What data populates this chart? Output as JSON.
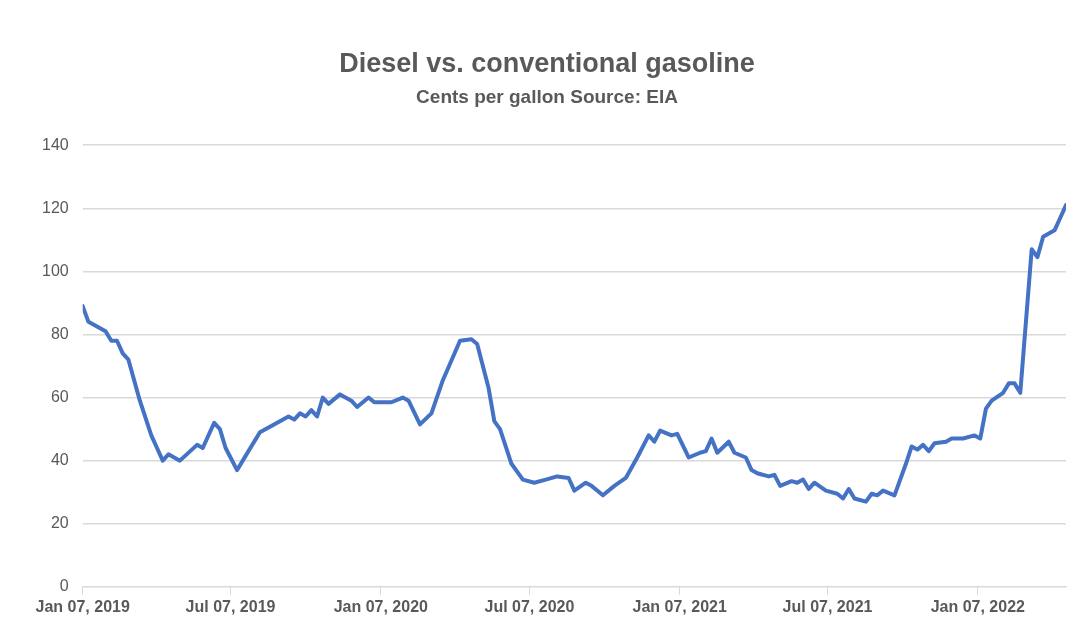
{
  "chart_data": {
    "type": "line",
    "title": "Diesel vs. conventional gasoline",
    "subtitle": "Cents per gallon Source: EIA",
    "x": [
      "2019-01-07",
      "2019-01-14",
      "2019-02-04",
      "2019-02-11",
      "2019-02-18",
      "2019-02-25",
      "2019-03-04",
      "2019-03-18",
      "2019-04-01",
      "2019-04-08",
      "2019-04-15",
      "2019-04-22",
      "2019-05-06",
      "2019-05-27",
      "2019-06-03",
      "2019-06-17",
      "2019-06-24",
      "2019-07-01",
      "2019-07-15",
      "2019-08-12",
      "2019-08-26",
      "2019-09-16",
      "2019-09-23",
      "2019-09-30",
      "2019-10-07",
      "2019-10-14",
      "2019-10-21",
      "2019-10-28",
      "2019-11-04",
      "2019-11-18",
      "2019-12-02",
      "2019-12-09",
      "2019-12-23",
      "2019-12-30",
      "2020-01-20",
      "2020-02-03",
      "2020-02-10",
      "2020-02-24",
      "2020-03-09",
      "2020-03-23",
      "2020-04-13",
      "2020-04-27",
      "2020-05-04",
      "2020-05-18",
      "2020-05-25",
      "2020-06-01",
      "2020-06-15",
      "2020-06-29",
      "2020-07-13",
      "2020-07-27",
      "2020-08-10",
      "2020-08-24",
      "2020-08-31",
      "2020-09-14",
      "2020-09-21",
      "2020-10-05",
      "2020-10-19",
      "2020-11-02",
      "2020-11-16",
      "2020-11-30",
      "2020-12-07",
      "2020-12-14",
      "2020-12-28",
      "2021-01-04",
      "2021-01-18",
      "2021-02-01",
      "2021-02-08",
      "2021-02-15",
      "2021-02-22",
      "2021-03-08",
      "2021-03-15",
      "2021-03-29",
      "2021-04-05",
      "2021-04-12",
      "2021-04-26",
      "2021-05-03",
      "2021-05-10",
      "2021-05-24",
      "2021-05-31",
      "2021-06-07",
      "2021-06-14",
      "2021-06-21",
      "2021-07-05",
      "2021-07-19",
      "2021-07-26",
      "2021-08-02",
      "2021-08-09",
      "2021-08-23",
      "2021-08-30",
      "2021-09-06",
      "2021-09-13",
      "2021-09-27",
      "2021-10-11",
      "2021-10-18",
      "2021-10-25",
      "2021-11-01",
      "2021-11-08",
      "2021-11-15",
      "2021-11-29",
      "2021-12-06",
      "2021-12-20",
      "2022-01-03",
      "2022-01-10",
      "2022-01-17",
      "2022-01-24",
      "2022-02-07",
      "2022-02-14",
      "2022-02-21",
      "2022-02-28",
      "2022-03-14",
      "2022-03-21",
      "2022-03-28",
      "2022-04-11",
      "2022-04-18",
      "2022-04-25"
    ],
    "series": [
      {
        "color": "#4472c4",
        "values": [
          89,
          84,
          81,
          78,
          78,
          74,
          72,
          59,
          48,
          44,
          40,
          42,
          40,
          45,
          44,
          52,
          50,
          44,
          37,
          49,
          51,
          54,
          53,
          55,
          54,
          56,
          54,
          60,
          58,
          61,
          59,
          57,
          60,
          58.5,
          58.5,
          60,
          59,
          51.5,
          55,
          65.5,
          78,
          78.5,
          77,
          63,
          52.5,
          50,
          39,
          34,
          33,
          34,
          35,
          34.5,
          30.5,
          33,
          32,
          29,
          32,
          34.5,
          41,
          48,
          46,
          49.5,
          48,
          48.5,
          41,
          42.5,
          43,
          47,
          42.5,
          46,
          42.5,
          41,
          37,
          36,
          35,
          35.5,
          32,
          33.5,
          33,
          34,
          31,
          33,
          30.5,
          29.5,
          28,
          31,
          28,
          27,
          29.5,
          29,
          30.5,
          29,
          39,
          44.5,
          43.5,
          45,
          43,
          45.5,
          46,
          47,
          47,
          48,
          47,
          56.5,
          59,
          61.5,
          64.5,
          64.5,
          61.5,
          107,
          104.5,
          111,
          113,
          117,
          121
        ]
      }
    ],
    "xlim": [
      "2019-01-07",
      "2022-04-25"
    ],
    "xticks": [
      {
        "value": "2019-01-07",
        "label": "Jan 07, 2019"
      },
      {
        "value": "2019-07-07",
        "label": "Jul 07, 2019"
      },
      {
        "value": "2020-01-07",
        "label": "Jan 07, 2020"
      },
      {
        "value": "2020-07-07",
        "label": "Jul 07, 2020"
      },
      {
        "value": "2021-01-07",
        "label": "Jan 07, 2021"
      },
      {
        "value": "2021-07-07",
        "label": "Jul 07, 2021"
      },
      {
        "value": "2022-01-07",
        "label": "Jan 07, 2022"
      }
    ],
    "ylim": [
      0,
      140
    ],
    "yticks": [
      0,
      20,
      40,
      60,
      80,
      100,
      120,
      140
    ],
    "grid": "y",
    "legend": false,
    "marker": "none",
    "line_style": "solid"
  }
}
